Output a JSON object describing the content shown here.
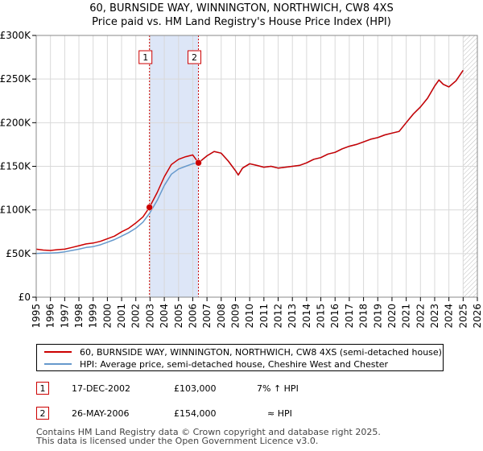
{
  "title": {
    "line1": "60, BURNSIDE WAY, WINNINGTON, NORTHWICH, CW8 4XS",
    "line2": "Price paid vs. HM Land Registry's House Price Index (HPI)"
  },
  "colors": {
    "property": "#cc0000",
    "hpi": "#6699cc",
    "shade": "#dde6f7",
    "grid": "#d9d9d9"
  },
  "chart_data": {
    "type": "line",
    "title": "60, BURNSIDE WAY, WINNINGTON, NORTHWICH, CW8 4XS — Price paid vs. HM Land Registry's House Price Index (HPI)",
    "xlabel": "",
    "ylabel": "",
    "xlim": [
      1995,
      2026
    ],
    "ylim": [
      0,
      300000
    ],
    "x_ticks": [
      "1995",
      "1996",
      "1997",
      "1998",
      "1999",
      "2000",
      "2001",
      "2002",
      "2003",
      "2004",
      "2005",
      "2006",
      "2007",
      "2008",
      "2009",
      "2010",
      "2011",
      "2012",
      "2013",
      "2014",
      "2015",
      "2016",
      "2017",
      "2018",
      "2019",
      "2020",
      "2021",
      "2022",
      "2023",
      "2024",
      "2025",
      "2026"
    ],
    "y_ticks": [
      {
        "value": 0,
        "label": "£0"
      },
      {
        "value": 50000,
        "label": "£50K"
      },
      {
        "value": 100000,
        "label": "£100K"
      },
      {
        "value": 150000,
        "label": "£150K"
      },
      {
        "value": 200000,
        "label": "£200K"
      },
      {
        "value": 250000,
        "label": "£250K"
      },
      {
        "value": 300000,
        "label": "£300K"
      }
    ],
    "grid": true,
    "shaded_range": [
      2002.96,
      2006.4
    ],
    "future_hatch_from": 2025.0,
    "series": [
      {
        "name": "60, BURNSIDE WAY, WINNINGTON, NORTHWICH, CW8 4XS (semi-detached house)",
        "color": "#cc0000",
        "x": [
          1995.0,
          1995.5,
          1996.0,
          1996.5,
          1997.0,
          1997.5,
          1998.0,
          1998.5,
          1999.0,
          1999.5,
          2000.0,
          2000.5,
          2001.0,
          2001.5,
          2002.0,
          2002.5,
          2002.96,
          2003.5,
          2004.0,
          2004.5,
          2005.0,
          2005.5,
          2006.0,
          2006.4,
          2007.0,
          2007.5,
          2008.0,
          2008.5,
          2009.0,
          2009.2,
          2009.5,
          2010.0,
          2010.5,
          2011.0,
          2011.5,
          2012.0,
          2012.5,
          2013.0,
          2013.5,
          2014.0,
          2014.5,
          2015.0,
          2015.5,
          2016.0,
          2016.5,
          2017.0,
          2017.5,
          2018.0,
          2018.5,
          2019.0,
          2019.5,
          2020.0,
          2020.5,
          2021.0,
          2021.5,
          2022.0,
          2022.5,
          2023.0,
          2023.3,
          2023.6,
          2024.0,
          2024.5,
          2025.0
        ],
        "values": [
          55000,
          54000,
          53500,
          54500,
          55000,
          57000,
          59000,
          61000,
          62000,
          64000,
          67000,
          70000,
          75000,
          79000,
          85000,
          92000,
          103000,
          120000,
          138000,
          152000,
          158000,
          161000,
          163000,
          154000,
          162000,
          167000,
          165000,
          156000,
          145000,
          140000,
          148000,
          153000,
          151000,
          149000,
          150000,
          148000,
          149000,
          150000,
          151000,
          154000,
          158000,
          160000,
          164000,
          166000,
          170000,
          173000,
          175000,
          178000,
          181000,
          183000,
          186000,
          188000,
          190000,
          200000,
          210000,
          218000,
          228000,
          242000,
          249000,
          244000,
          241000,
          248000,
          260000
        ]
      },
      {
        "name": "HPI: Average price, semi-detached house, Cheshire West and Chester",
        "color": "#6699cc",
        "x": [
          1995.0,
          1995.5,
          1996.0,
          1996.5,
          1997.0,
          1997.5,
          1998.0,
          1998.5,
          1999.0,
          1999.5,
          2000.0,
          2000.5,
          2001.0,
          2001.5,
          2002.0,
          2002.5,
          2002.96,
          2003.5,
          2004.0,
          2004.5,
          2005.0,
          2005.5,
          2006.0,
          2006.4,
          2007.0,
          2007.5,
          2008.0,
          2008.5,
          2009.0,
          2009.2,
          2009.5,
          2010.0,
          2010.5,
          2011.0,
          2011.5,
          2012.0,
          2012.5,
          2013.0,
          2013.5,
          2014.0,
          2014.5,
          2015.0,
          2015.5,
          2016.0,
          2016.5,
          2017.0,
          2017.5,
          2018.0,
          2018.5,
          2019.0,
          2019.5,
          2020.0,
          2020.5,
          2021.0,
          2021.5,
          2022.0,
          2022.5,
          2023.0,
          2023.3,
          2023.6,
          2024.0,
          2024.5,
          2025.0
        ],
        "values": [
          50000,
          50500,
          50500,
          51000,
          52000,
          53500,
          55000,
          57000,
          58000,
          60000,
          63000,
          66000,
          70000,
          74000,
          79000,
          86000,
          96000,
          111000,
          128000,
          141000,
          147000,
          150000,
          153000,
          154000,
          162000,
          167000,
          165000,
          156000,
          145000,
          140000,
          148000,
          153000,
          151000,
          149000,
          150000,
          148000,
          149000,
          150000,
          151000,
          154000,
          158000,
          160000,
          164000,
          166000,
          170000,
          173000,
          175000,
          178000,
          181000,
          183000,
          186000,
          188000,
          190000,
          200000,
          210000,
          218000,
          228000,
          242000,
          249000,
          244000,
          241000,
          248000,
          260000
        ]
      }
    ],
    "sales": [
      {
        "id": "1",
        "x": 2002.96,
        "value": 103000,
        "date": "17-DEC-2002",
        "price": "£103,000",
        "hpi": "7% ↑ HPI"
      },
      {
        "id": "2",
        "x": 2006.4,
        "value": 154000,
        "date": "26-MAY-2006",
        "price": "£154,000",
        "hpi": "≈ HPI"
      }
    ]
  },
  "legend": {
    "property_label": "60, BURNSIDE WAY, WINNINGTON, NORTHWICH, CW8 4XS (semi-detached house)",
    "hpi_label": "HPI: Average price, semi-detached house, Cheshire West and Chester"
  },
  "footer": {
    "line1": "Contains HM Land Registry data © Crown copyright and database right 2025.",
    "line2": "This data is licensed under the Open Government Licence v3.0."
  }
}
